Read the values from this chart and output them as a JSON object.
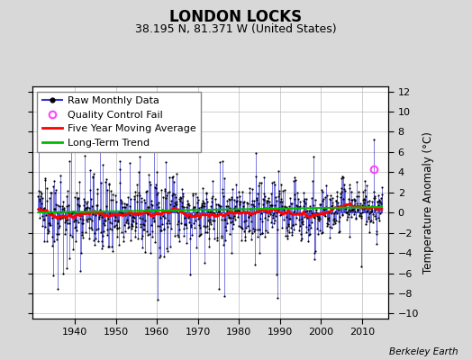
{
  "title": "LONDON LOCKS",
  "subtitle": "38.195 N, 81.371 W (United States)",
  "ylabel": "Temperature Anomaly (°C)",
  "credit": "Berkeley Earth",
  "ylim": [
    -10.5,
    12.5
  ],
  "yticks": [
    -10,
    -8,
    -6,
    -4,
    -2,
    0,
    2,
    4,
    6,
    8,
    10,
    12
  ],
  "xlim": [
    1929.5,
    2016.5
  ],
  "xticks": [
    1940,
    1950,
    1960,
    1970,
    1980,
    1990,
    2000,
    2010
  ],
  "start_year": 1931,
  "end_year": 2014,
  "qc_fail_year": 2012.9,
  "qc_fail_value": 4.3,
  "bg_color": "#d8d8d8",
  "plot_bg": "#ffffff",
  "raw_line_color": "#3333cc",
  "raw_dot_color": "#000000",
  "moving_avg_color": "#ff0000",
  "trend_color": "#00bb00",
  "qc_color": "#ff44ff",
  "legend_fontsize": 8,
  "title_fontsize": 12,
  "subtitle_fontsize": 9,
  "seed": 137
}
